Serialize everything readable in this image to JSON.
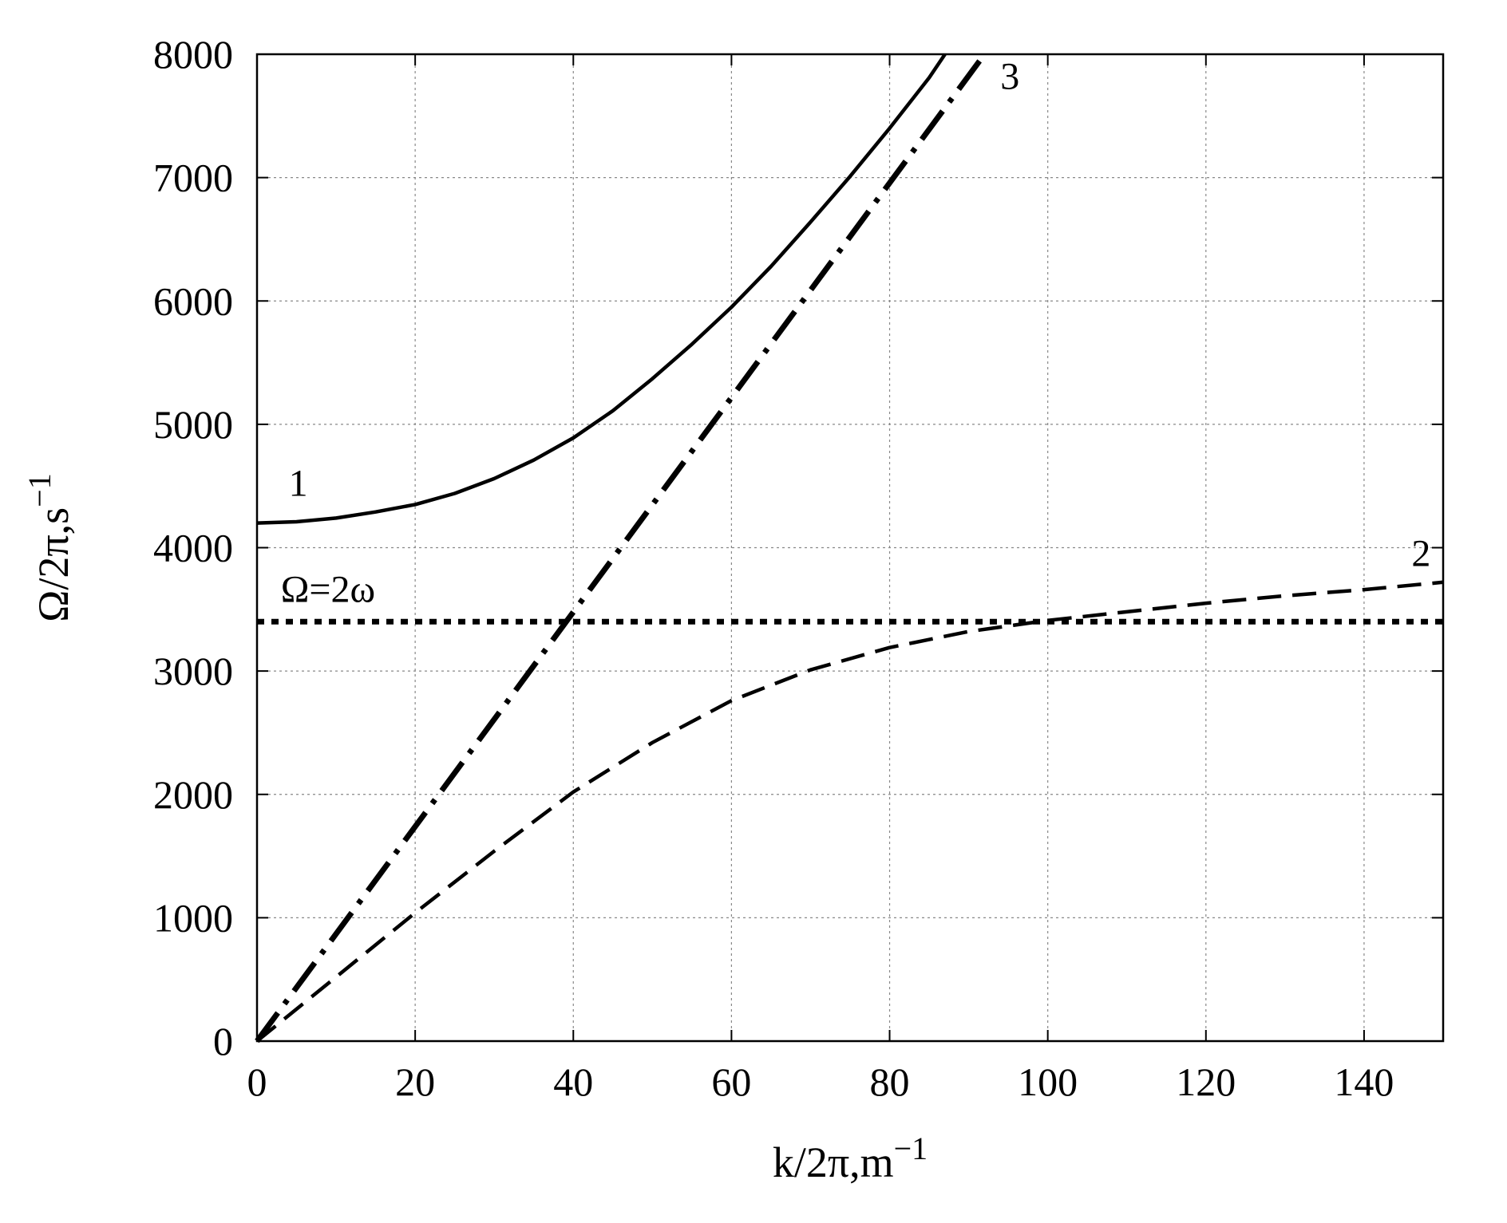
{
  "chart_data": {
    "type": "line",
    "xlabel": "k/2π,m",
    "xlabel_exp": "−1",
    "ylabel": "Ω/2π,s",
    "ylabel_exp": "−1",
    "xlim": [
      0,
      150
    ],
    "ylim": [
      0,
      8000
    ],
    "xticks": [
      0,
      20,
      40,
      60,
      80,
      100,
      120,
      140
    ],
    "yticks": [
      0,
      1000,
      2000,
      3000,
      4000,
      5000,
      6000,
      7000,
      8000
    ],
    "grid": true,
    "series": [
      {
        "name": "1",
        "style": "solid",
        "x": [
          0,
          5,
          10,
          15,
          20,
          25,
          30,
          35,
          40,
          45,
          50,
          55,
          60,
          65,
          70,
          75,
          80,
          85,
          87
        ],
        "y": [
          4200,
          4210,
          4240,
          4290,
          4350,
          4440,
          4560,
          4710,
          4890,
          5110,
          5370,
          5650,
          5950,
          6280,
          6640,
          7010,
          7400,
          7810,
          8000
        ]
      },
      {
        "name": "2",
        "style": "dashed",
        "x": [
          0,
          10,
          20,
          30,
          40,
          50,
          60,
          70,
          80,
          90,
          100,
          110,
          120,
          130,
          140,
          150
        ],
        "y": [
          0,
          520,
          1040,
          1540,
          2020,
          2420,
          2760,
          3010,
          3190,
          3320,
          3410,
          3480,
          3550,
          3610,
          3660,
          3720
        ]
      },
      {
        "name": "3",
        "style": "dash-dot",
        "x": [
          0,
          92
        ],
        "y": [
          0,
          8000
        ]
      },
      {
        "name": "Ω=2ω",
        "style": "dotted",
        "x": [
          0,
          150
        ],
        "y": [
          3400,
          3400
        ]
      }
    ],
    "annotations": [
      {
        "text": "1",
        "x": 4,
        "y": 4420
      },
      {
        "text": "2",
        "x": 146,
        "y": 3850
      },
      {
        "text": "3",
        "x": 94,
        "y": 7720
      },
      {
        "text": "Ω=2ω",
        "x": 3,
        "y": 3560
      }
    ]
  },
  "colors": {
    "line": "#000000",
    "grid": "#888888",
    "background": "#ffffff"
  }
}
